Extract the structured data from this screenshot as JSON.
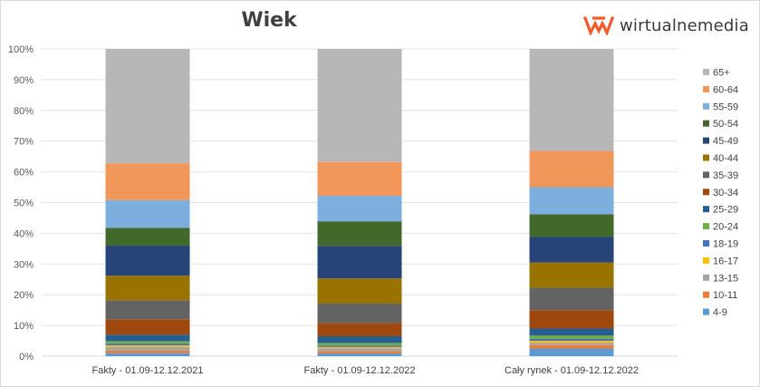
{
  "brand": {
    "name": "wirtualnemedia",
    "accent": "#f0592a"
  },
  "chart_data": {
    "type": "bar",
    "stacked": true,
    "title": "Wiek",
    "ylim": [
      0,
      100
    ],
    "yticks": [
      "0%",
      "10%",
      "20%",
      "30%",
      "40%",
      "50%",
      "60%",
      "70%",
      "80%",
      "90%",
      "100%"
    ],
    "categories": [
      "Fakty - 01.09-12.12.2021",
      "Fakty - 01.09-12.12.2022",
      "Cały rynek - 01.09-12.12.2022"
    ],
    "legend_position": "right",
    "series": [
      {
        "name": "4-9",
        "color": "#5b9bd5",
        "values": [
          1.0,
          0.9,
          2.5
        ]
      },
      {
        "name": "10-11",
        "color": "#ed7d31",
        "values": [
          0.8,
          0.7,
          1.1
        ]
      },
      {
        "name": "13-15",
        "color": "#a5a5a5",
        "values": [
          1.2,
          1.0,
          0.8
        ]
      },
      {
        "name": "16-17",
        "color": "#ffc000",
        "values": [
          0.5,
          0.4,
          0.6
        ]
      },
      {
        "name": "18-19",
        "color": "#4472c4",
        "values": [
          0.6,
          0.5,
          0.6
        ]
      },
      {
        "name": "20-24",
        "color": "#70ad47",
        "values": [
          0.8,
          0.8,
          1.1
        ]
      },
      {
        "name": "25-29",
        "color": "#255e91",
        "values": [
          2.1,
          2.2,
          2.3
        ]
      },
      {
        "name": "30-34",
        "color": "#9e480e",
        "values": [
          5.0,
          4.3,
          6.0
        ]
      },
      {
        "name": "35-39",
        "color": "#636363",
        "values": [
          6.2,
          6.3,
          7.3
        ]
      },
      {
        "name": "40-44",
        "color": "#997300",
        "values": [
          8.0,
          8.2,
          8.2
        ]
      },
      {
        "name": "45-49",
        "color": "#264478",
        "values": [
          9.8,
          10.6,
          8.3
        ]
      },
      {
        "name": "50-54",
        "color": "#43682b",
        "values": [
          5.8,
          8.0,
          7.4
        ]
      },
      {
        "name": "55-59",
        "color": "#7cafdd",
        "values": [
          9.0,
          8.3,
          8.8
        ]
      },
      {
        "name": "60-64",
        "color": "#f1975a",
        "values": [
          12.0,
          11.0,
          11.8
        ]
      },
      {
        "name": "65+",
        "color": "#b7b7b7",
        "values": [
          37.2,
          36.8,
          33.2
        ]
      }
    ]
  }
}
